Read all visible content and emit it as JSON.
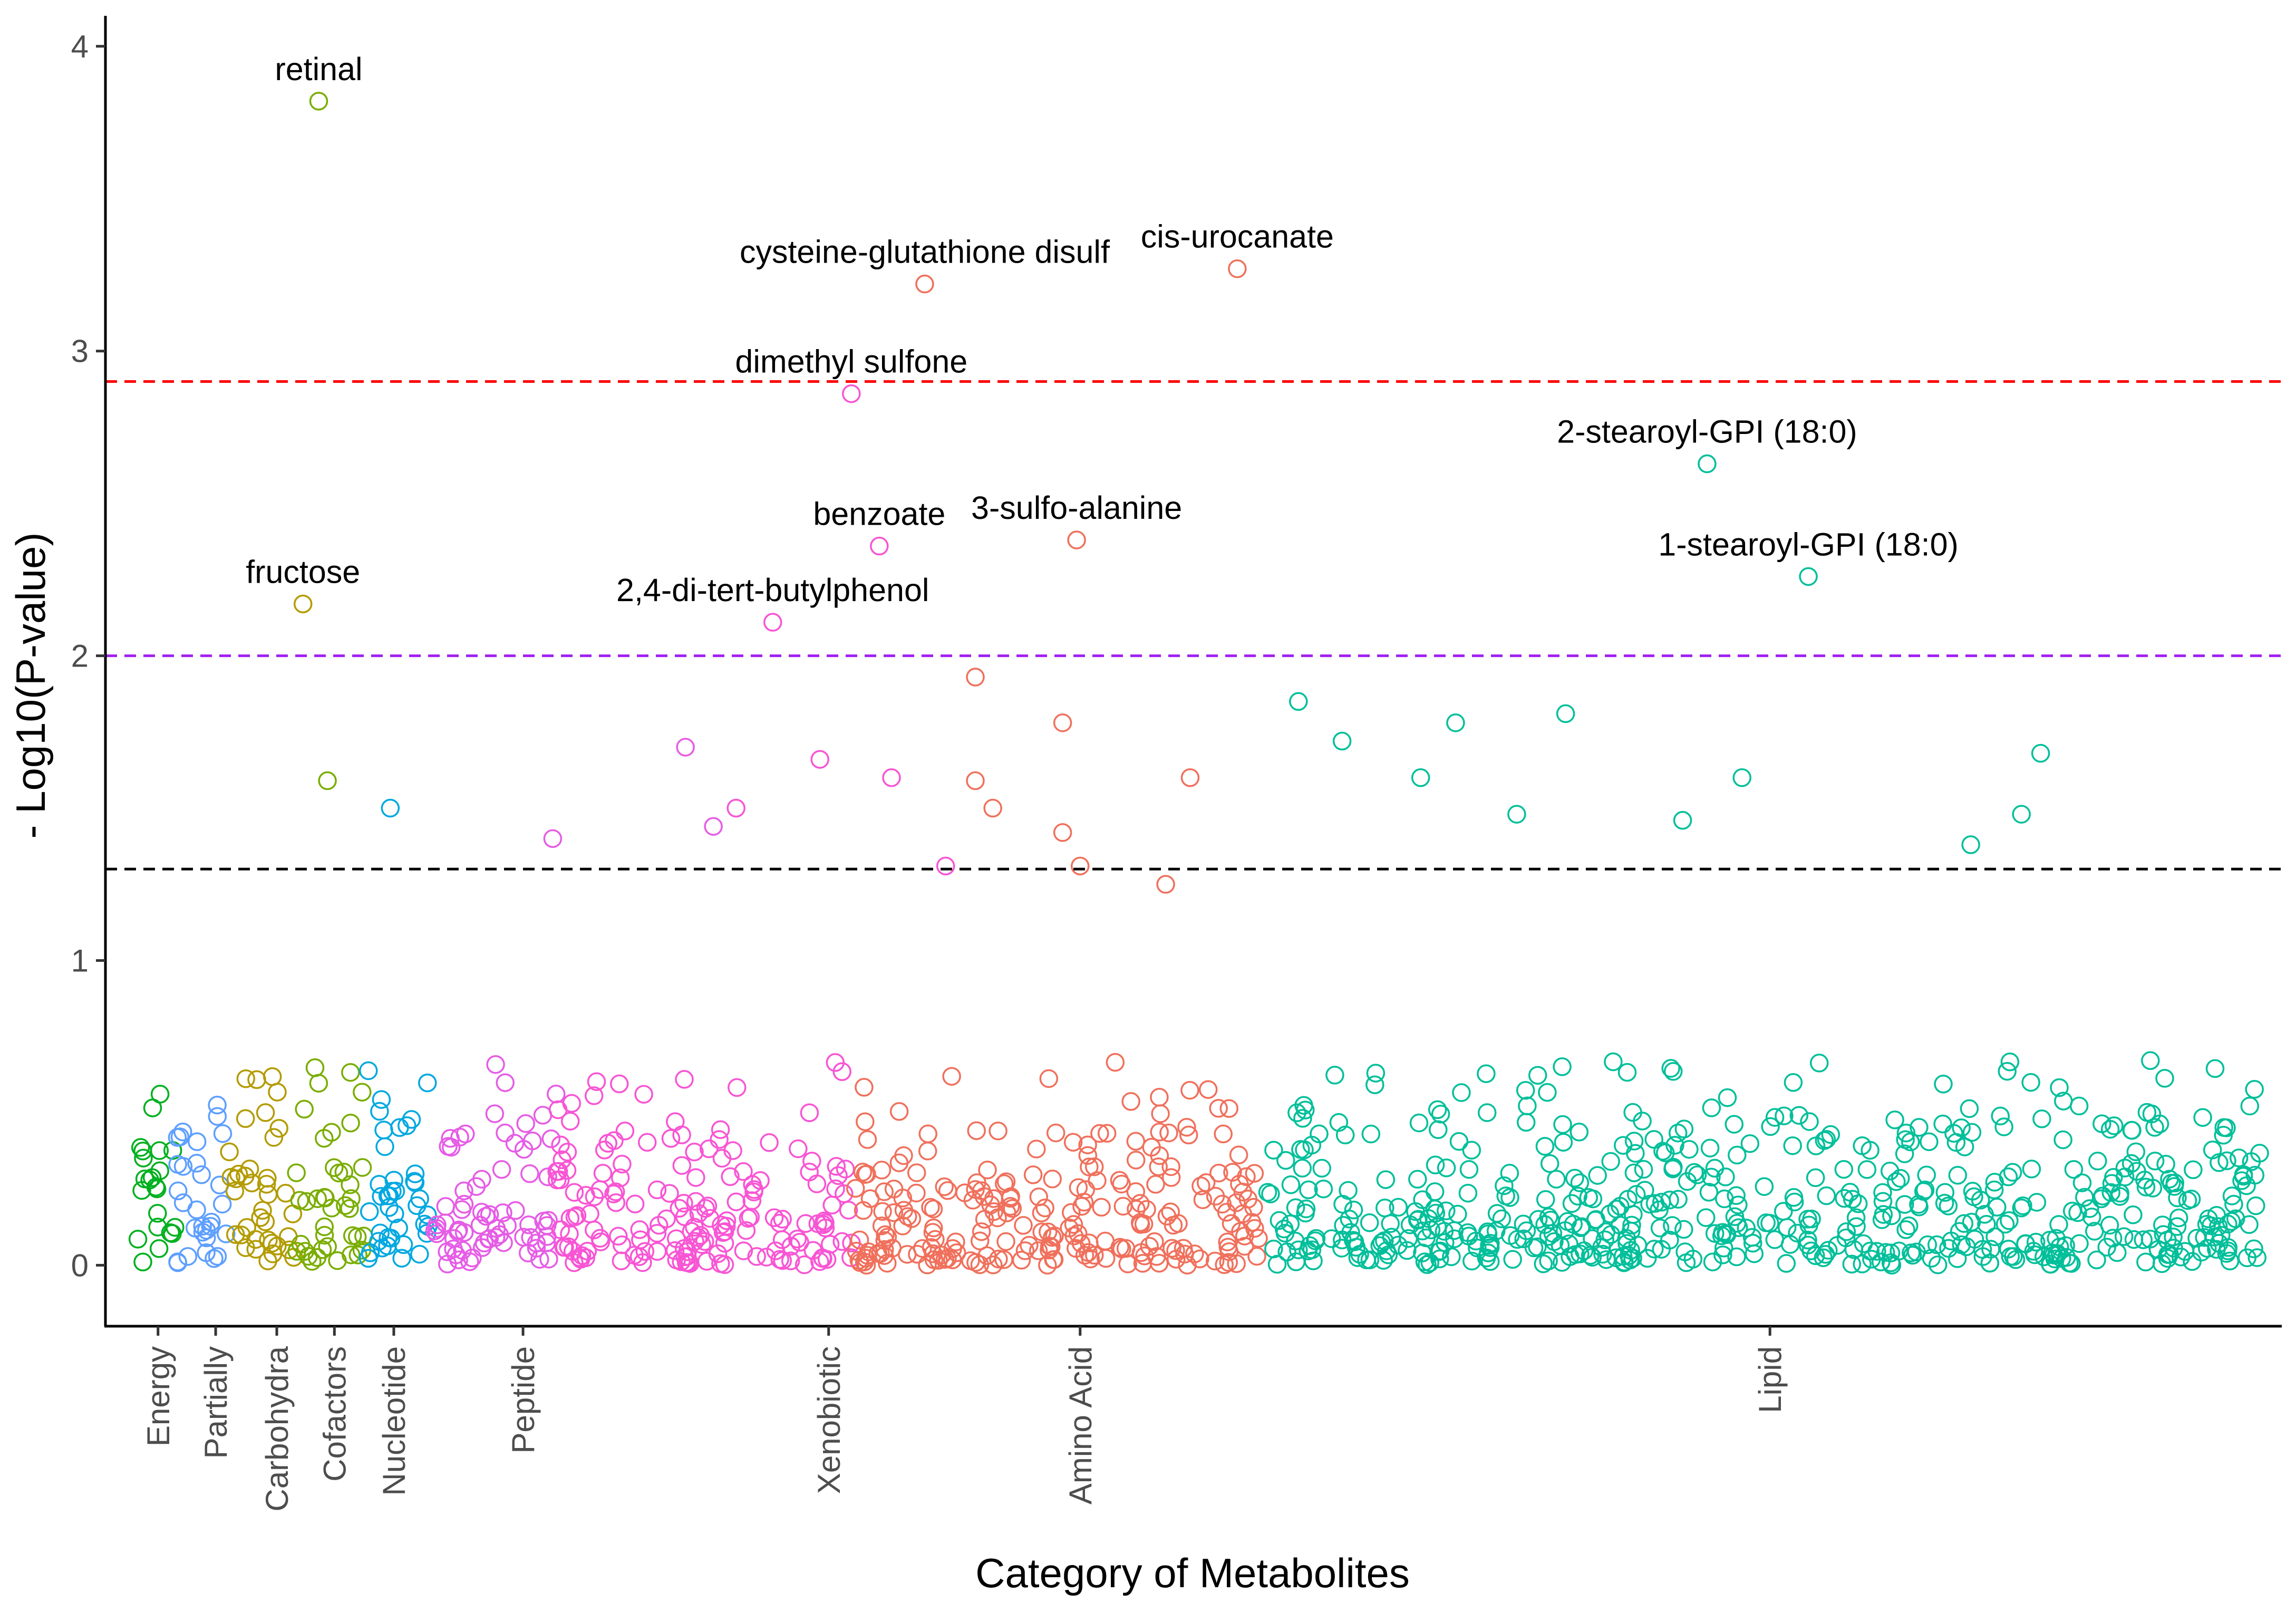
{
  "chart_data": {
    "type": "scatter",
    "title": "",
    "xlabel": "Category of Metabolites",
    "ylabel": "- Log10(P-value)",
    "ylim": [
      -0.2,
      4.1
    ],
    "y_ticks": [
      0,
      1,
      2,
      3,
      4
    ],
    "grid": false,
    "legend": "none",
    "x_index_range": [
      0,
      1216
    ],
    "categories": [
      {
        "name": "Energy",
        "color": "#00B01F",
        "start": 0,
        "count": 22,
        "tick_index": 12
      },
      {
        "name": "Partially",
        "color": "#5E9FFF",
        "start": 22,
        "count": 30,
        "tick_index": 45
      },
      {
        "name": "Carbohydra",
        "color": "#B39B00",
        "start": 52,
        "count": 38,
        "tick_index": 80
      },
      {
        "name": "Cofactors",
        "color": "#7AAD00",
        "start": 90,
        "count": 40,
        "tick_index": 113
      },
      {
        "name": "Nucleotide",
        "color": "#00A8E0",
        "start": 130,
        "count": 40,
        "tick_index": 147
      },
      {
        "name": "Peptide",
        "color": "#E65CE6",
        "start": 170,
        "count": 70,
        "tick_index": 221
      },
      {
        "name": "Xenobiotic",
        "color": "#F855D4",
        "start": 240,
        "count": 170,
        "tick_index": 396
      },
      {
        "name": "Amino Acid",
        "color": "#F0705C",
        "start": 410,
        "count": 235,
        "tick_index": 540
      },
      {
        "name": "Lipid",
        "color": "#00BF9A",
        "start": 645,
        "count": 572,
        "tick_index": 935
      }
    ],
    "thresholds": [
      {
        "value": 2.9,
        "color": "#FF0000"
      },
      {
        "value": 2.0,
        "color": "#A020F0"
      },
      {
        "value": 1.3,
        "color": "#000000"
      }
    ],
    "labeled_points": [
      {
        "label": "retinal",
        "x": 104,
        "y": 3.82,
        "color": "#7AAD00"
      },
      {
        "label": "cysteine-glutathione disulf",
        "x": 451,
        "y": 3.22,
        "color": "#F0705C"
      },
      {
        "label": "cis-urocanate",
        "x": 630,
        "y": 3.27,
        "color": "#F0705C"
      },
      {
        "label": "dimethyl sulfone",
        "x": 409,
        "y": 2.86,
        "color": "#F855D4"
      },
      {
        "label": "2-stearoyl-GPI (18:0)",
        "x": 899,
        "y": 2.63,
        "color": "#00BF9A"
      },
      {
        "label": "benzoate",
        "x": 425,
        "y": 2.36,
        "color": "#F855D4"
      },
      {
        "label": "3-sulfo-alanine",
        "x": 538,
        "y": 2.38,
        "color": "#F0705C"
      },
      {
        "label": "1-stearoyl-GPI (18:0)",
        "x": 957,
        "y": 2.26,
        "color": "#00BF9A"
      },
      {
        "label": "fructose",
        "x": 95,
        "y": 2.17,
        "color": "#B39B00"
      },
      {
        "label": "2,4-di-tert-butylphenol",
        "x": 364,
        "y": 2.11,
        "color": "#F855D4"
      }
    ],
    "notable_points": [
      {
        "x": 480,
        "y": 1.93,
        "color": "#F0705C"
      },
      {
        "x": 530,
        "y": 1.78,
        "color": "#F0705C"
      },
      {
        "x": 480,
        "y": 1.59,
        "color": "#F0705C"
      },
      {
        "x": 490,
        "y": 1.5,
        "color": "#F0705C"
      },
      {
        "x": 530,
        "y": 1.42,
        "color": "#F0705C"
      },
      {
        "x": 540,
        "y": 1.31,
        "color": "#F0705C"
      },
      {
        "x": 603,
        "y": 1.6,
        "color": "#F0705C"
      },
      {
        "x": 589,
        "y": 1.25,
        "color": "#F0705C"
      },
      {
        "x": 432,
        "y": 1.6,
        "color": "#F855D4"
      },
      {
        "x": 391,
        "y": 1.66,
        "color": "#F855D4"
      },
      {
        "x": 343,
        "y": 1.5,
        "color": "#F855D4"
      },
      {
        "x": 463,
        "y": 1.31,
        "color": "#F855D4"
      },
      {
        "x": 314,
        "y": 1.7,
        "color": "#E65CE6"
      },
      {
        "x": 238,
        "y": 1.4,
        "color": "#E65CE6"
      },
      {
        "x": 330,
        "y": 1.44,
        "color": "#E65CE6"
      },
      {
        "x": 109,
        "y": 1.59,
        "color": "#7AAD00"
      },
      {
        "x": 145,
        "y": 1.5,
        "color": "#00A8E0"
      },
      {
        "x": 665,
        "y": 1.85,
        "color": "#00BF9A"
      },
      {
        "x": 690,
        "y": 1.72,
        "color": "#00BF9A"
      },
      {
        "x": 755,
        "y": 1.78,
        "color": "#00BF9A"
      },
      {
        "x": 818,
        "y": 1.81,
        "color": "#00BF9A"
      },
      {
        "x": 735,
        "y": 1.6,
        "color": "#00BF9A"
      },
      {
        "x": 790,
        "y": 1.48,
        "color": "#00BF9A"
      },
      {
        "x": 1090,
        "y": 1.68,
        "color": "#00BF9A"
      },
      {
        "x": 1079,
        "y": 1.48,
        "color": "#00BF9A"
      },
      {
        "x": 919,
        "y": 1.6,
        "color": "#00BF9A"
      },
      {
        "x": 885,
        "y": 1.46,
        "color": "#00BF9A"
      },
      {
        "x": 1050,
        "y": 1.38,
        "color": "#00BF9A"
      }
    ]
  }
}
